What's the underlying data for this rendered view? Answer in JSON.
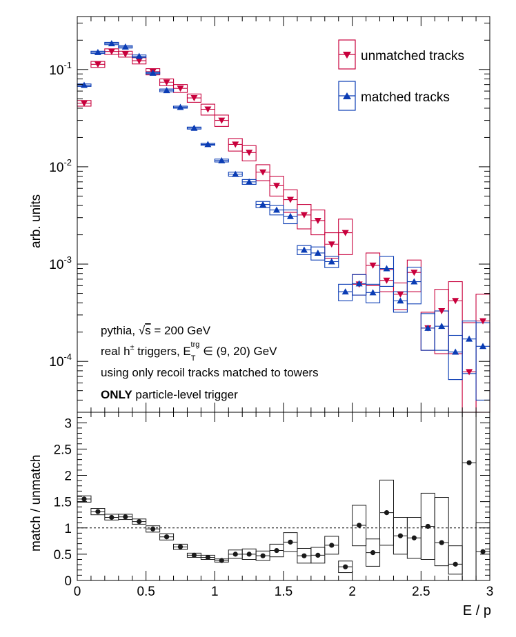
{
  "chart_data": [
    {
      "type": "scatter",
      "panel": "top",
      "ylabel": "arb. units",
      "yscale": "log",
      "ylim": [
        3e-05,
        0.35
      ],
      "xlim": [
        0,
        3
      ],
      "ytick_labels": [
        "10^-4",
        "10^-3",
        "10^-2",
        "10^-1"
      ],
      "legend": {
        "placement": "top-right",
        "entries": [
          "unmatched tracks",
          "matched tracks"
        ]
      },
      "x": [
        0.05,
        0.15,
        0.25,
        0.35,
        0.45,
        0.55,
        0.65,
        0.75,
        0.85,
        0.95,
        1.05,
        1.15,
        1.25,
        1.35,
        1.45,
        1.55,
        1.65,
        1.75,
        1.85,
        1.95,
        2.05,
        2.15,
        2.25,
        2.35,
        2.45,
        2.55,
        2.65,
        2.75,
        2.85,
        2.95
      ],
      "series": [
        {
          "name": "unmatched tracks",
          "color": "#c8003c",
          "marker": "triangle-down",
          "values": [
            0.045,
            0.113,
            0.153,
            0.144,
            0.123,
            0.095,
            0.074,
            0.064,
            0.051,
            0.039,
            0.03,
            0.017,
            0.014,
            0.0088,
            0.0064,
            0.0046,
            0.0032,
            0.0028,
            0.0016,
            0.0021,
            0.00062,
            0.00097,
            0.00068,
            0.00049,
            0.00082,
            0.00022,
            0.00033,
            0.00042,
            7.8e-05,
            0.00026
          ],
          "sys_low": [
            0.042,
            0.105,
            0.143,
            0.134,
            0.114,
            0.088,
            0.068,
            0.058,
            0.046,
            0.034,
            0.026,
            0.0145,
            0.0115,
            0.0072,
            0.005,
            0.0034,
            0.0023,
            0.002,
            0.00115,
            0.00125,
            0.00048,
            0.0006,
            0.00052,
            0.00034,
            0.00052,
            0.00013,
            0.00012,
            0.00012,
            2.8e-05,
            2.8e-05
          ],
          "sys_high": [
            0.048,
            0.121,
            0.163,
            0.154,
            0.132,
            0.102,
            0.08,
            0.07,
            0.056,
            0.044,
            0.034,
            0.0195,
            0.0165,
            0.0105,
            0.008,
            0.0058,
            0.0041,
            0.0036,
            0.0021,
            0.0029,
            0.00078,
            0.0013,
            0.00088,
            0.00064,
            0.0011,
            0.00032,
            0.00055,
            0.00066,
            0.00025,
            0.00049
          ]
        },
        {
          "name": "matched tracks",
          "color": "#0a3cb4",
          "marker": "triangle-up",
          "values": [
            0.069,
            0.15,
            0.185,
            0.171,
            0.137,
            0.092,
            0.061,
            0.041,
            0.025,
            0.017,
            0.0116,
            0.0084,
            0.007,
            0.0041,
            0.0036,
            0.0031,
            0.0014,
            0.0013,
            0.00106,
            0.00052,
            0.00063,
            0.00051,
            0.0009,
            0.00042,
            0.00066,
            0.00022,
            0.00023,
            0.000125,
            0.00017,
            0.000143
          ],
          "sys_low": [
            0.067,
            0.146,
            0.18,
            0.166,
            0.133,
            0.09,
            0.059,
            0.04,
            0.0244,
            0.0166,
            0.0112,
            0.008,
            0.0066,
            0.0038,
            0.0032,
            0.0026,
            0.00125,
            0.0011,
            0.00092,
            0.00042,
            0.00048,
            0.0004,
            0.00059,
            0.00032,
            0.00039,
            0.00013,
            0.00013,
            6.5e-05,
            7.5e-05,
            4e-05
          ],
          "sys_high": [
            0.071,
            0.154,
            0.19,
            0.176,
            0.141,
            0.094,
            0.063,
            0.042,
            0.0256,
            0.0174,
            0.012,
            0.0088,
            0.0074,
            0.0044,
            0.004,
            0.0036,
            0.00155,
            0.0015,
            0.0012,
            0.00062,
            0.00078,
            0.00062,
            0.0012,
            0.00052,
            0.00093,
            0.00031,
            0.00033,
            0.000185,
            0.00026,
            0.00025
          ]
        }
      ],
      "annotations": [
        {
          "prefix": "pythia, ",
          "sqrt_sym": "√",
          "sqrt_arg": "s",
          "suffix": " = 200 GeV"
        },
        {
          "prefix": "real h",
          "sup": "±",
          "mid": " triggers, E",
          "sub": "T",
          "sup2": "trg",
          "suffix": " ∈ (9, 20) GeV"
        },
        {
          "text": "using only recoil tracks matched to towers"
        },
        {
          "bold": "ONLY",
          "text": " particle-level trigger"
        }
      ]
    },
    {
      "type": "scatter",
      "panel": "bottom",
      "xlabel": "E / p",
      "ylabel": "match / unmatch",
      "xlim": [
        0,
        3
      ],
      "ylim": [
        0,
        3.2
      ],
      "xticks": [
        "0",
        "0.5",
        "1",
        "1.5",
        "2",
        "2.5",
        "3"
      ],
      "yticks": [
        "0",
        "0.5",
        "1",
        "1.5",
        "2",
        "2.5",
        "3"
      ],
      "reference_line": 1,
      "color": "#1a1a1a",
      "x": [
        0.05,
        0.15,
        0.25,
        0.35,
        0.45,
        0.55,
        0.65,
        0.75,
        0.85,
        0.95,
        1.05,
        1.15,
        1.25,
        1.35,
        1.45,
        1.55,
        1.65,
        1.75,
        1.85,
        1.95,
        2.05,
        2.15,
        2.25,
        2.35,
        2.45,
        2.55,
        2.65,
        2.75,
        2.85,
        2.95
      ],
      "values": [
        1.55,
        1.31,
        1.2,
        1.21,
        1.12,
        0.98,
        0.83,
        0.64,
        0.48,
        0.44,
        0.38,
        0.5,
        0.5,
        0.47,
        0.57,
        0.73,
        0.47,
        0.48,
        0.67,
        0.26,
        1.05,
        0.53,
        1.29,
        0.85,
        0.81,
        1.03,
        0.72,
        0.31,
        2.24,
        0.55
      ],
      "sys_low": [
        1.49,
        1.25,
        1.15,
        1.16,
        1.07,
        0.92,
        0.77,
        0.59,
        0.44,
        0.4,
        0.35,
        0.42,
        0.4,
        0.38,
        0.45,
        0.55,
        0.33,
        0.33,
        0.5,
        0.15,
        0.66,
        0.27,
        0.67,
        0.5,
        0.42,
        0.4,
        0.28,
        0.12,
        0.0,
        0.0
      ],
      "sys_high": [
        1.61,
        1.37,
        1.26,
        1.26,
        1.17,
        1.04,
        0.89,
        0.69,
        0.52,
        0.48,
        0.41,
        0.58,
        0.6,
        0.56,
        0.69,
        0.91,
        0.61,
        0.63,
        0.84,
        0.37,
        1.43,
        0.79,
        1.91,
        1.2,
        1.2,
        1.66,
        1.58,
        0.66,
        3.2,
        1.1
      ]
    }
  ]
}
